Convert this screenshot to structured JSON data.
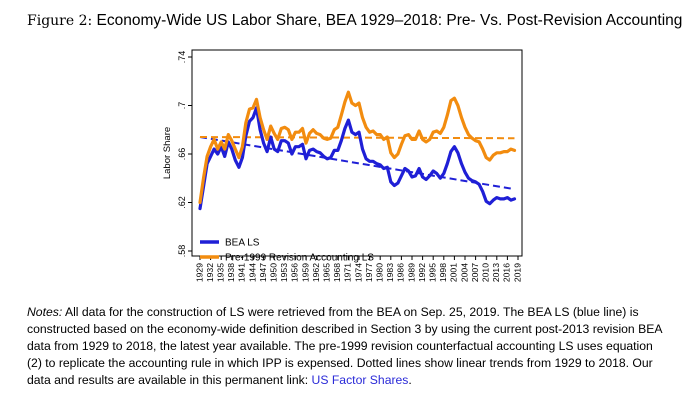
{
  "figure": {
    "label": "Figure 2:",
    "title": "Economy-Wide US Labor Share, BEA 1929–2018: Pre- Vs. Post-Revision Accounting"
  },
  "chart_data": {
    "type": "line",
    "title": "",
    "xlabel": "",
    "ylabel": "Labor Share",
    "ylim": [
      0.58,
      0.74
    ],
    "yticks": [
      ".58",
      ".62",
      ".66",
      ".7",
      ".74"
    ],
    "ytick_values": [
      0.58,
      0.62,
      0.66,
      0.7,
      0.74
    ],
    "xlim": [
      1929,
      2019
    ],
    "x_tick_labels": [
      "1929",
      "1932",
      "1935",
      "1938",
      "1941",
      "1944",
      "1947",
      "1950",
      "1953",
      "1956",
      "1959",
      "1962",
      "1965",
      "1968",
      "1971",
      "1974",
      "1977",
      "1980",
      "1983",
      "1986",
      "1989",
      "1992",
      "1995",
      "1998",
      "2001",
      "2004",
      "2007",
      "2010",
      "2013",
      "2016",
      "2019"
    ],
    "legend": [
      "BEA LS",
      "Pre-1999 Revision Accounting LS"
    ],
    "legend_position": "bottom-left",
    "series": [
      {
        "name": "BEA LS",
        "color": "#1f1fd6",
        "x": [
          1929,
          1930,
          1931,
          1932,
          1933,
          1934,
          1935,
          1936,
          1937,
          1938,
          1939,
          1940,
          1941,
          1942,
          1943,
          1944,
          1945,
          1946,
          1947,
          1948,
          1949,
          1950,
          1951,
          1952,
          1953,
          1954,
          1955,
          1956,
          1957,
          1958,
          1959,
          1960,
          1961,
          1962,
          1963,
          1964,
          1965,
          1966,
          1967,
          1968,
          1969,
          1970,
          1971,
          1972,
          1973,
          1974,
          1975,
          1976,
          1977,
          1978,
          1979,
          1980,
          1981,
          1982,
          1983,
          1984,
          1985,
          1986,
          1987,
          1988,
          1989,
          1990,
          1991,
          1992,
          1993,
          1994,
          1995,
          1996,
          1997,
          1998,
          1999,
          2000,
          2001,
          2002,
          2003,
          2004,
          2005,
          2006,
          2007,
          2008,
          2009,
          2010,
          2011,
          2012,
          2013,
          2014,
          2015,
          2016,
          2017,
          2018
        ],
        "y": [
          0.615,
          0.633,
          0.652,
          0.658,
          0.664,
          0.66,
          0.666,
          0.658,
          0.67,
          0.664,
          0.655,
          0.649,
          0.657,
          0.675,
          0.687,
          0.69,
          0.698,
          0.68,
          0.669,
          0.662,
          0.674,
          0.664,
          0.662,
          0.671,
          0.671,
          0.669,
          0.66,
          0.666,
          0.666,
          0.668,
          0.656,
          0.663,
          0.664,
          0.662,
          0.661,
          0.658,
          0.656,
          0.657,
          0.663,
          0.663,
          0.671,
          0.681,
          0.688,
          0.678,
          0.676,
          0.678,
          0.664,
          0.656,
          0.654,
          0.654,
          0.652,
          0.651,
          0.648,
          0.649,
          0.637,
          0.634,
          0.636,
          0.642,
          0.648,
          0.646,
          0.641,
          0.642,
          0.648,
          0.641,
          0.639,
          0.642,
          0.646,
          0.644,
          0.64,
          0.644,
          0.652,
          0.662,
          0.666,
          0.661,
          0.652,
          0.645,
          0.64,
          0.638,
          0.637,
          0.635,
          0.629,
          0.621,
          0.619,
          0.622,
          0.624,
          0.623,
          0.623,
          0.624,
          0.622,
          0.623
        ]
      },
      {
        "name": "Pre-1999 Revision Accounting LS",
        "color": "#f28c0f",
        "x": [
          1929,
          1930,
          1931,
          1932,
          1933,
          1934,
          1935,
          1936,
          1937,
          1938,
          1939,
          1940,
          1941,
          1942,
          1943,
          1944,
          1945,
          1946,
          1947,
          1948,
          1949,
          1950,
          1951,
          1952,
          1953,
          1954,
          1955,
          1956,
          1957,
          1958,
          1959,
          1960,
          1961,
          1962,
          1963,
          1964,
          1965,
          1966,
          1967,
          1968,
          1969,
          1970,
          1971,
          1972,
          1973,
          1974,
          1975,
          1976,
          1977,
          1978,
          1979,
          1980,
          1981,
          1982,
          1983,
          1984,
          1985,
          1986,
          1987,
          1988,
          1989,
          1990,
          1991,
          1992,
          1993,
          1994,
          1995,
          1996,
          1997,
          1998,
          1999,
          2000,
          2001,
          2002,
          2003,
          2004,
          2005,
          2006,
          2007,
          2008,
          2009,
          2010,
          2011,
          2012,
          2013,
          2014,
          2015,
          2016,
          2017,
          2018
        ],
        "y": [
          0.62,
          0.64,
          0.658,
          0.666,
          0.672,
          0.664,
          0.67,
          0.664,
          0.676,
          0.671,
          0.664,
          0.657,
          0.666,
          0.686,
          0.697,
          0.698,
          0.705,
          0.69,
          0.68,
          0.672,
          0.683,
          0.677,
          0.672,
          0.681,
          0.682,
          0.68,
          0.672,
          0.678,
          0.678,
          0.681,
          0.669,
          0.677,
          0.68,
          0.677,
          0.676,
          0.673,
          0.672,
          0.673,
          0.68,
          0.682,
          0.692,
          0.703,
          0.711,
          0.702,
          0.7,
          0.702,
          0.69,
          0.682,
          0.678,
          0.679,
          0.676,
          0.676,
          0.672,
          0.674,
          0.661,
          0.657,
          0.66,
          0.668,
          0.675,
          0.676,
          0.672,
          0.672,
          0.679,
          0.672,
          0.67,
          0.672,
          0.678,
          0.679,
          0.677,
          0.682,
          0.692,
          0.704,
          0.706,
          0.7,
          0.69,
          0.682,
          0.676,
          0.673,
          0.671,
          0.67,
          0.664,
          0.657,
          0.655,
          0.659,
          0.661,
          0.661,
          0.662,
          0.662,
          0.664,
          0.663
        ]
      }
    ],
    "trend_lines": [
      {
        "name": "BEA LS linear trend",
        "color": "#1f1fd6",
        "x": [
          1929,
          2018
        ],
        "y": [
          0.674,
          0.631
        ],
        "style": "dashed"
      },
      {
        "name": "Pre-1999 linear trend",
        "color": "#f28c0f",
        "x": [
          1929,
          2018
        ],
        "y": [
          0.674,
          0.673
        ],
        "style": "dashed"
      }
    ]
  },
  "notes": {
    "lead": "Notes:",
    "body": " All data for the construction of LS were retrieved from the BEA on Sep. 25, 2019. The BEA LS (blue line) is constructed based on the economy-wide definition described in Section 3 by using the current post-2013 revision BEA data from 1929 to 2018, the latest year available. The pre-1999 revision counterfactual accounting LS uses equation (2) to replicate the accounting rule in which IPP is expensed. Dotted lines show linear trends from 1929 to 2018. Our data and results are available in this permanent link: ",
    "link": "US Factor Shares",
    "tail": "."
  }
}
